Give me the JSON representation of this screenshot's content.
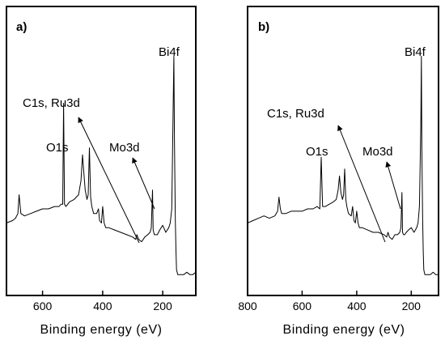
{
  "chart_data": [
    {
      "type": "line",
      "panel_label": "a)",
      "xlabel": "Binding energy (eV)",
      "ylabel": "",
      "xlim": [
        720,
        90
      ],
      "ylim": [
        0,
        100
      ],
      "xticks": [
        600,
        400,
        200
      ],
      "tick_labels": [
        "600",
        "400",
        "200"
      ],
      "grid": false,
      "legend": "none",
      "series": [
        {
          "x": [
            720,
            700,
            690,
            682,
            678,
            672,
            660,
            640,
            620,
            600,
            580,
            560,
            545,
            538,
            533,
            530,
            527,
            522,
            510,
            495,
            480,
            472,
            467,
            463,
            458,
            452,
            448,
            444,
            440,
            436,
            430,
            420,
            414,
            410,
            404,
            400,
            395,
            390,
            380,
            360,
            340,
            320,
            300,
            290,
            286,
            280,
            270,
            260,
            250,
            242,
            238,
            234,
            232,
            228,
            224,
            218,
            210,
            200,
            190,
            180,
            175,
            170,
            165,
            163,
            161,
            158,
            156,
            154,
            150,
            140,
            130,
            120,
            110,
            100,
            90
          ],
          "y": [
            24,
            25,
            26,
            28,
            36,
            28,
            27,
            28,
            29,
            30,
            30,
            31,
            31,
            32,
            32,
            75,
            32,
            31,
            33,
            34,
            36,
            42,
            53,
            46,
            38,
            34,
            36,
            56,
            35,
            31,
            28,
            28,
            30,
            25,
            24,
            31,
            24,
            22,
            22,
            21,
            20,
            19,
            18,
            17,
            19,
            17,
            16,
            18,
            19,
            20,
            22,
            38,
            21,
            19,
            19,
            19,
            21,
            23,
            20,
            22,
            24,
            30,
            75,
            95,
            60,
            25,
            12,
            4,
            2,
            2,
            2,
            3,
            2,
            2,
            3
          ]
        }
      ],
      "annotations": [
        {
          "text": "Bi4f",
          "x": 162,
          "y": 95
        },
        {
          "text": "C1s, Ru3d",
          "x": 285,
          "y": 17
        },
        {
          "text": "O1s",
          "x": 530,
          "y": 75
        },
        {
          "text": "Mo3d",
          "x": 234,
          "y": 38
        }
      ]
    },
    {
      "type": "line",
      "panel_label": "b)",
      "xlabel": "Binding energy (eV)",
      "ylabel": "",
      "xlim": [
        800,
        100
      ],
      "ylim": [
        0,
        100
      ],
      "xticks": [
        800,
        600,
        400,
        200
      ],
      "tick_labels": [
        "800",
        "600",
        "400",
        "200"
      ],
      "grid": false,
      "legend": "none",
      "series": [
        {
          "x": [
            800,
            780,
            760,
            740,
            720,
            700,
            690,
            685,
            680,
            675,
            660,
            640,
            620,
            600,
            580,
            560,
            545,
            535,
            530,
            525,
            515,
            500,
            485,
            475,
            468,
            463,
            458,
            452,
            448,
            444,
            440,
            436,
            430,
            420,
            415,
            410,
            405,
            400,
            395,
            390,
            380,
            360,
            340,
            320,
            300,
            290,
            285,
            280,
            270,
            260,
            250,
            242,
            238,
            234,
            232,
            228,
            224,
            218,
            210,
            200,
            190,
            180,
            175,
            170,
            165,
            163,
            161,
            158,
            156,
            154,
            150,
            140,
            130,
            120,
            110,
            100
          ],
          "y": [
            24,
            25,
            26,
            27,
            26,
            27,
            29,
            35,
            30,
            28,
            28,
            29,
            29,
            29,
            30,
            30,
            31,
            30,
            52,
            31,
            31,
            32,
            33,
            34,
            38,
            44,
            37,
            34,
            36,
            47,
            34,
            31,
            28,
            27,
            31,
            25,
            24,
            29,
            24,
            22,
            22,
            21,
            20,
            20,
            19,
            18,
            20,
            18,
            17,
            19,
            19,
            20,
            22,
            37,
            20,
            19,
            19,
            20,
            21,
            22,
            20,
            22,
            24,
            31,
            65,
            95,
            55,
            25,
            12,
            4,
            2,
            2,
            2,
            3,
            2,
            2
          ]
        }
      ],
      "annotations": [
        {
          "text": "Bi4f",
          "x": 162,
          "y": 95
        },
        {
          "text": "C1s, Ru3d",
          "x": 290,
          "y": 18
        },
        {
          "text": "O1s",
          "x": 530,
          "y": 52
        },
        {
          "text": "Mo3d",
          "x": 234,
          "y": 37
        }
      ]
    }
  ]
}
